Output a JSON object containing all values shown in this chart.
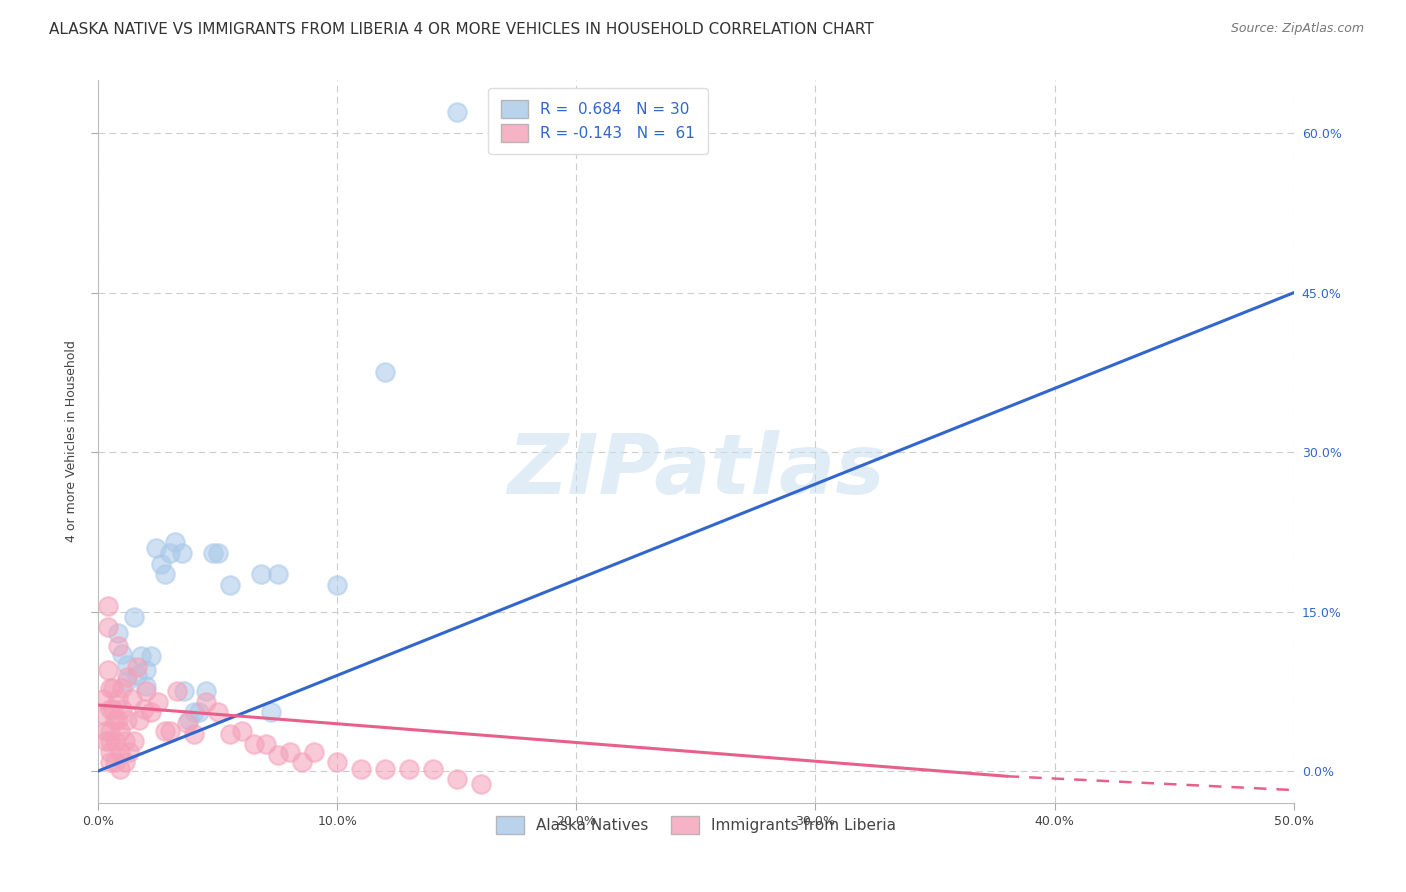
{
  "title": "ALASKA NATIVE VS IMMIGRANTS FROM LIBERIA 4 OR MORE VEHICLES IN HOUSEHOLD CORRELATION CHART",
  "source": "Source: ZipAtlas.com",
  "xlabel_ticks": [
    "0.0%",
    "10.0%",
    "20.0%",
    "30.0%",
    "40.0%",
    "50.0%"
  ],
  "ylabel_ticks": [
    "0.0%",
    "15.0%",
    "30.0%",
    "45.0%",
    "60.0%"
  ],
  "ylabel_label": "4 or more Vehicles in Household",
  "xlim": [
    0.0,
    0.5
  ],
  "ylim": [
    -0.03,
    0.65
  ],
  "watermark": "ZIPatlas",
  "legend1_label": "Alaska Natives",
  "legend2_label": "Immigrants from Liberia",
  "r1": 0.684,
  "n1": 30,
  "r2": -0.143,
  "n2": 61,
  "blue_color": "#a8c8e8",
  "pink_color": "#f4a0b8",
  "blue_line_color": "#3366cc",
  "pink_line_color": "#e8608a",
  "blue_scatter": [
    [
      0.008,
      0.13
    ],
    [
      0.01,
      0.11
    ],
    [
      0.012,
      0.1
    ],
    [
      0.012,
      0.085
    ],
    [
      0.015,
      0.145
    ],
    [
      0.016,
      0.09
    ],
    [
      0.018,
      0.108
    ],
    [
      0.02,
      0.095
    ],
    [
      0.02,
      0.08
    ],
    [
      0.022,
      0.108
    ],
    [
      0.024,
      0.21
    ],
    [
      0.026,
      0.195
    ],
    [
      0.028,
      0.185
    ],
    [
      0.03,
      0.205
    ],
    [
      0.032,
      0.215
    ],
    [
      0.035,
      0.205
    ],
    [
      0.036,
      0.075
    ],
    [
      0.038,
      0.048
    ],
    [
      0.04,
      0.055
    ],
    [
      0.042,
      0.055
    ],
    [
      0.045,
      0.075
    ],
    [
      0.048,
      0.205
    ],
    [
      0.05,
      0.205
    ],
    [
      0.055,
      0.175
    ],
    [
      0.068,
      0.185
    ],
    [
      0.072,
      0.055
    ],
    [
      0.075,
      0.185
    ],
    [
      0.1,
      0.175
    ],
    [
      0.12,
      0.375
    ],
    [
      0.15,
      0.62
    ]
  ],
  "pink_scatter": [
    [
      0.002,
      0.068
    ],
    [
      0.003,
      0.052
    ],
    [
      0.003,
      0.028
    ],
    [
      0.003,
      0.038
    ],
    [
      0.004,
      0.155
    ],
    [
      0.004,
      0.135
    ],
    [
      0.004,
      0.095
    ],
    [
      0.005,
      0.078
    ],
    [
      0.005,
      0.058
    ],
    [
      0.005,
      0.038
    ],
    [
      0.005,
      0.028
    ],
    [
      0.005,
      0.018
    ],
    [
      0.005,
      0.008
    ],
    [
      0.006,
      0.078
    ],
    [
      0.006,
      0.058
    ],
    [
      0.007,
      0.048
    ],
    [
      0.007,
      0.028
    ],
    [
      0.007,
      0.008
    ],
    [
      0.008,
      0.118
    ],
    [
      0.008,
      0.068
    ],
    [
      0.008,
      0.048
    ],
    [
      0.009,
      0.038
    ],
    [
      0.009,
      0.018
    ],
    [
      0.009,
      0.002
    ],
    [
      0.01,
      0.078
    ],
    [
      0.01,
      0.058
    ],
    [
      0.011,
      0.028
    ],
    [
      0.011,
      0.008
    ],
    [
      0.012,
      0.088
    ],
    [
      0.012,
      0.048
    ],
    [
      0.013,
      0.018
    ],
    [
      0.014,
      0.068
    ],
    [
      0.015,
      0.028
    ],
    [
      0.016,
      0.098
    ],
    [
      0.017,
      0.048
    ],
    [
      0.019,
      0.058
    ],
    [
      0.02,
      0.075
    ],
    [
      0.022,
      0.055
    ],
    [
      0.025,
      0.065
    ],
    [
      0.028,
      0.038
    ],
    [
      0.03,
      0.038
    ],
    [
      0.033,
      0.075
    ],
    [
      0.037,
      0.045
    ],
    [
      0.04,
      0.035
    ],
    [
      0.045,
      0.065
    ],
    [
      0.05,
      0.055
    ],
    [
      0.055,
      0.035
    ],
    [
      0.06,
      0.038
    ],
    [
      0.065,
      0.025
    ],
    [
      0.07,
      0.025
    ],
    [
      0.075,
      0.015
    ],
    [
      0.08,
      0.018
    ],
    [
      0.085,
      0.008
    ],
    [
      0.09,
      0.018
    ],
    [
      0.1,
      0.008
    ],
    [
      0.11,
      0.002
    ],
    [
      0.12,
      0.002
    ],
    [
      0.13,
      0.002
    ],
    [
      0.14,
      0.002
    ],
    [
      0.15,
      -0.008
    ],
    [
      0.16,
      -0.012
    ]
  ],
  "blue_line": [
    [
      0.0,
      0.0
    ],
    [
      0.5,
      0.45
    ]
  ],
  "pink_solid_line": [
    [
      0.0,
      0.062
    ],
    [
      0.38,
      -0.005
    ]
  ],
  "pink_dash_line": [
    [
      0.38,
      -0.005
    ],
    [
      0.5,
      -0.018
    ]
  ],
  "grid_color": "#cccccc",
  "background_color": "#ffffff",
  "title_fontsize": 11,
  "axis_label_fontsize": 9,
  "tick_fontsize": 9,
  "legend_fontsize": 11,
  "source_fontsize": 9
}
